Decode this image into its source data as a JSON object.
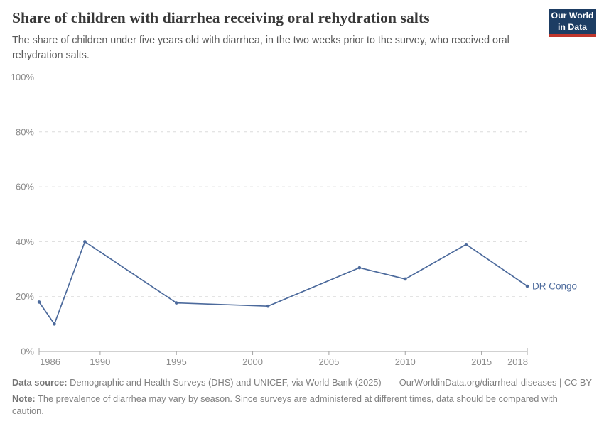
{
  "header": {
    "title": "Share of children with diarrhea receiving oral rehydration salts",
    "subtitle": "The share of children under five years old with diarrhea, in the two weeks prior to the survey, who received oral rehydration salts.",
    "logo": {
      "line1": "Our World",
      "line2": "in Data",
      "bg_color": "#1d3d63",
      "stripe_color": "#c0362c"
    }
  },
  "chart_data": {
    "type": "line",
    "title": "Share of children with diarrhea receiving oral rehydration salts",
    "subtitle": "The share of children under five years old with diarrhea, in the two weeks prior to the survey, who received oral rehydration salts.",
    "series": [
      {
        "name": "DR Congo",
        "color": "#4c6a9c",
        "x": [
          1986,
          1987,
          1989,
          1995,
          2001,
          2007,
          2010,
          2014,
          2018
        ],
        "values": [
          18,
          10,
          40,
          17.7,
          16.5,
          30.5,
          26.4,
          39,
          23.8
        ]
      }
    ],
    "xlabel": "",
    "ylabel": "",
    "xlim": [
      1986,
      2018
    ],
    "ylim": [
      0,
      100
    ],
    "x_ticks": [
      1986,
      1990,
      1995,
      2000,
      2005,
      2010,
      2015,
      2018
    ],
    "y_ticks": [
      0,
      20,
      40,
      60,
      80,
      100
    ],
    "y_tick_suffix": "%",
    "grid": "horizontal-dashed",
    "legend": "end-of-line-label",
    "colors": {
      "gridline": "#dcdcdc",
      "axis": "#a3a3a3",
      "tick_label": "#8c8c8c"
    }
  },
  "footer": {
    "data_source_label": "Data source:",
    "data_source_text": "Demographic and Health Surveys (DHS) and UNICEF, via World Bank (2025)",
    "attribution": "OurWorldinData.org/diarrheal-diseases | CC BY",
    "note_label": "Note:",
    "note_text": "The prevalence of diarrhea may vary by season. Since surveys are administered at different times, data should be compared with caution."
  }
}
